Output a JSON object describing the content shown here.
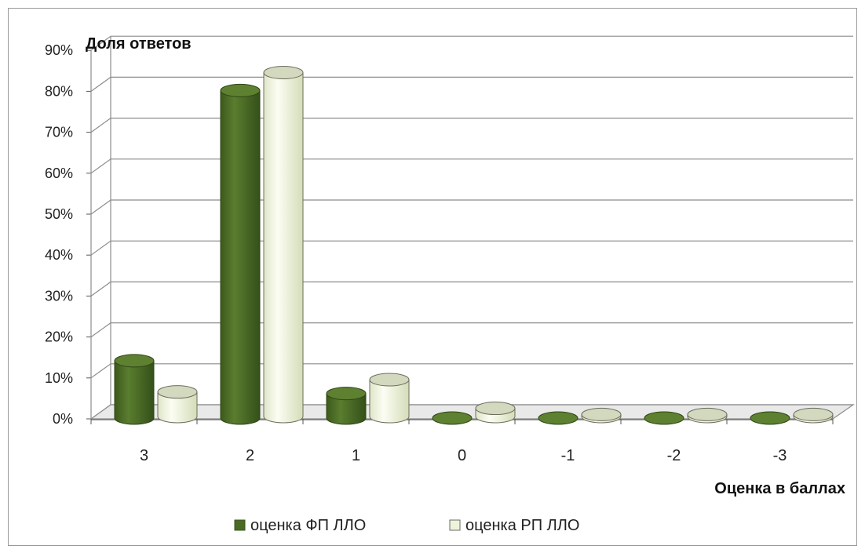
{
  "chart_data": {
    "type": "bar",
    "style": "3d-cylinder",
    "title": "",
    "ylabel": "Доля ответов",
    "xlabel": "Оценка в баллах",
    "categories": [
      "3",
      "2",
      "1",
      "0",
      "-1",
      "-2",
      "-3"
    ],
    "series": [
      {
        "name": "оценка ФП ЛЛО",
        "color": "#4a6b24",
        "values": [
          14,
          80,
          6,
          0,
          0,
          0,
          0
        ]
      },
      {
        "name": "оценка РП ЛЛО",
        "color": "#eef3dc",
        "values": [
          6,
          84,
          9,
          2,
          0.5,
          0.5,
          0.5
        ]
      }
    ],
    "ylim": [
      0,
      90
    ],
    "yticks": [
      "0%",
      "10%",
      "20%",
      "30%",
      "40%",
      "50%",
      "60%",
      "70%",
      "80%",
      "90%"
    ],
    "grid": true,
    "legend_position": "bottom"
  }
}
